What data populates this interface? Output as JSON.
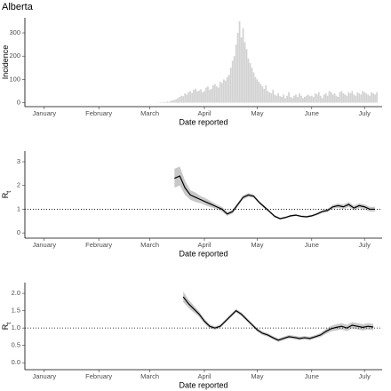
{
  "chart_data": [
    {
      "type": "bar",
      "title": "Alberta",
      "ylabel": "Incidence",
      "xlabel": "Date reported",
      "color": "#d3d3d3",
      "xlim": [
        -10,
        193
      ],
      "ylim": [
        -17,
        365
      ],
      "xticks": [
        {
          "value": 1,
          "label": "January"
        },
        {
          "value": 32,
          "label": "February"
        },
        {
          "value": 61,
          "label": "March"
        },
        {
          "value": 92,
          "label": "April"
        },
        {
          "value": 122,
          "label": "May"
        },
        {
          "value": 153,
          "label": "June"
        },
        {
          "value": 183,
          "label": "July"
        }
      ],
      "yticks": [
        0,
        100,
        200,
        300
      ],
      "x": [
        65,
        66,
        67,
        68,
        69,
        70,
        71,
        72,
        73,
        74,
        75,
        76,
        77,
        78,
        79,
        80,
        81,
        82,
        83,
        84,
        85,
        86,
        87,
        88,
        89,
        90,
        91,
        92,
        93,
        94,
        95,
        96,
        97,
        98,
        99,
        100,
        101,
        102,
        103,
        104,
        105,
        106,
        107,
        108,
        109,
        110,
        111,
        112,
        113,
        114,
        115,
        116,
        117,
        118,
        119,
        120,
        121,
        122,
        123,
        124,
        125,
        126,
        127,
        128,
        129,
        130,
        131,
        132,
        133,
        134,
        135,
        136,
        137,
        138,
        139,
        140,
        141,
        142,
        143,
        144,
        145,
        146,
        147,
        148,
        149,
        150,
        151,
        152,
        153,
        154,
        155,
        156,
        157,
        158,
        159,
        160,
        161,
        162,
        163,
        164,
        165,
        166,
        167,
        168,
        169,
        170,
        171,
        172,
        173,
        174,
        175,
        176,
        177,
        178,
        179,
        180,
        181,
        182,
        183,
        184,
        185,
        186,
        187,
        188,
        189,
        190
      ],
      "values": [
        1,
        0,
        2,
        1,
        3,
        2,
        5,
        3,
        8,
        10,
        12,
        15,
        20,
        25,
        30,
        28,
        40,
        35,
        45,
        50,
        42,
        55,
        60,
        48,
        52,
        58,
        45,
        50,
        65,
        70,
        55,
        60,
        75,
        80,
        70,
        65,
        90,
        85,
        100,
        95,
        110,
        120,
        150,
        180,
        200,
        250,
        300,
        350,
        280,
        320,
        260,
        230,
        190,
        170,
        150,
        130,
        110,
        100,
        90,
        80,
        70,
        60,
        75,
        50,
        45,
        40,
        55,
        35,
        30,
        40,
        28,
        25,
        35,
        20,
        30,
        45,
        25,
        20,
        30,
        35,
        25,
        40,
        30,
        20,
        25,
        30,
        35,
        28,
        30,
        25,
        40,
        35,
        45,
        30,
        20,
        35,
        40,
        30,
        50,
        45,
        35,
        40,
        30,
        25,
        45,
        50,
        40,
        35,
        30,
        45,
        40,
        50,
        35,
        30,
        45,
        40,
        35,
        50,
        45,
        40,
        35,
        30,
        45,
        40,
        35,
        45
      ]
    },
    {
      "type": "line",
      "ylabel": "R",
      "ylabel_sub": "t",
      "xlabel": "Date reported",
      "color": "#000000",
      "band_color": "#c8c8c8",
      "xlim": [
        -10,
        193
      ],
      "ylim": [
        -0.22,
        3.45
      ],
      "xticks": [
        {
          "value": 1,
          "label": "January"
        },
        {
          "value": 32,
          "label": "February"
        },
        {
          "value": 61,
          "label": "March"
        },
        {
          "value": 92,
          "label": "April"
        },
        {
          "value": 122,
          "label": "May"
        },
        {
          "value": 153,
          "label": "June"
        },
        {
          "value": 183,
          "label": "July"
        }
      ],
      "yticks": [
        0,
        1,
        2,
        3
      ],
      "hline": 1,
      "x": [
        75,
        78,
        81,
        84,
        87,
        90,
        93,
        96,
        99,
        102,
        105,
        108,
        111,
        114,
        117,
        120,
        123,
        126,
        129,
        132,
        135,
        138,
        141,
        144,
        147,
        150,
        153,
        156,
        159,
        162,
        165,
        168,
        171,
        174,
        177,
        180,
        183,
        186,
        189
      ],
      "values": [
        2.3,
        2.4,
        1.9,
        1.6,
        1.5,
        1.4,
        1.3,
        1.2,
        1.1,
        1.0,
        0.8,
        0.9,
        1.2,
        1.5,
        1.6,
        1.55,
        1.3,
        1.1,
        0.9,
        0.7,
        0.6,
        0.65,
        0.72,
        0.75,
        0.7,
        0.68,
        0.72,
        0.8,
        0.9,
        0.95,
        1.1,
        1.15,
        1.1,
        1.2,
        1.05,
        1.15,
        1.1,
        1.0,
        1.0
      ],
      "lower": [
        1.9,
        2.0,
        1.6,
        1.4,
        1.3,
        1.25,
        1.15,
        1.08,
        1.0,
        0.9,
        0.72,
        0.82,
        1.12,
        1.42,
        1.52,
        1.48,
        1.24,
        1.04,
        0.85,
        0.65,
        0.56,
        0.61,
        0.68,
        0.71,
        0.66,
        0.64,
        0.68,
        0.75,
        0.84,
        0.88,
        1.02,
        1.06,
        1.0,
        1.1,
        0.95,
        1.05,
        1.0,
        0.9,
        0.9
      ],
      "upper": [
        2.7,
        2.8,
        2.2,
        1.8,
        1.7,
        1.55,
        1.45,
        1.32,
        1.2,
        1.1,
        0.88,
        0.98,
        1.28,
        1.58,
        1.68,
        1.62,
        1.36,
        1.16,
        0.95,
        0.75,
        0.64,
        0.69,
        0.76,
        0.79,
        0.74,
        0.72,
        0.76,
        0.85,
        0.96,
        1.02,
        1.18,
        1.24,
        1.2,
        1.3,
        1.15,
        1.25,
        1.2,
        1.1,
        1.1
      ]
    },
    {
      "type": "line",
      "ylabel": "R",
      "ylabel_sub": "t",
      "xlabel": "Date reported",
      "color": "#000000",
      "band_color": "#c8c8c8",
      "xlim": [
        -10,
        193
      ],
      "ylim": [
        -0.2,
        2.31
      ],
      "xticks": [
        {
          "value": 1,
          "label": "January"
        },
        {
          "value": 32,
          "label": "February"
        },
        {
          "value": 61,
          "label": "March"
        },
        {
          "value": 92,
          "label": "April"
        },
        {
          "value": 122,
          "label": "May"
        },
        {
          "value": 153,
          "label": "June"
        },
        {
          "value": 183,
          "label": "July"
        }
      ],
      "yticks": [
        {
          "value": 0,
          "label": "0.0"
        },
        0.5,
        {
          "value": 1,
          "label": "1.0"
        },
        1.5,
        {
          "value": 2,
          "label": "2.0"
        }
      ],
      "hline": 1,
      "x": [
        80,
        83,
        86,
        89,
        92,
        95,
        98,
        101,
        104,
        107,
        110,
        113,
        116,
        119,
        122,
        125,
        128,
        131,
        134,
        137,
        140,
        143,
        146,
        149,
        152,
        155,
        158,
        161,
        164,
        167,
        170,
        173,
        176,
        179,
        182,
        185,
        188
      ],
      "values": [
        1.9,
        1.7,
        1.55,
        1.4,
        1.2,
        1.05,
        1.0,
        1.05,
        1.2,
        1.35,
        1.5,
        1.4,
        1.25,
        1.1,
        0.95,
        0.85,
        0.8,
        0.72,
        0.65,
        0.7,
        0.75,
        0.73,
        0.7,
        0.72,
        0.7,
        0.75,
        0.8,
        0.9,
        0.98,
        1.02,
        1.05,
        1.0,
        1.08,
        1.05,
        1.02,
        1.05,
        1.03
      ],
      "lower": [
        1.75,
        1.58,
        1.45,
        1.32,
        1.13,
        0.99,
        0.95,
        1.0,
        1.15,
        1.3,
        1.45,
        1.35,
        1.2,
        1.05,
        0.9,
        0.8,
        0.75,
        0.67,
        0.6,
        0.65,
        0.7,
        0.68,
        0.65,
        0.67,
        0.65,
        0.7,
        0.74,
        0.83,
        0.9,
        0.93,
        0.96,
        0.91,
        0.99,
        0.96,
        0.93,
        0.96,
        0.94
      ],
      "upper": [
        2.05,
        1.82,
        1.65,
        1.48,
        1.27,
        1.11,
        1.05,
        1.1,
        1.25,
        1.4,
        1.55,
        1.45,
        1.3,
        1.15,
        1.0,
        0.9,
        0.85,
        0.77,
        0.7,
        0.75,
        0.8,
        0.78,
        0.75,
        0.77,
        0.75,
        0.8,
        0.86,
        0.97,
        1.06,
        1.11,
        1.14,
        1.09,
        1.17,
        1.14,
        1.11,
        1.14,
        1.12
      ]
    }
  ]
}
